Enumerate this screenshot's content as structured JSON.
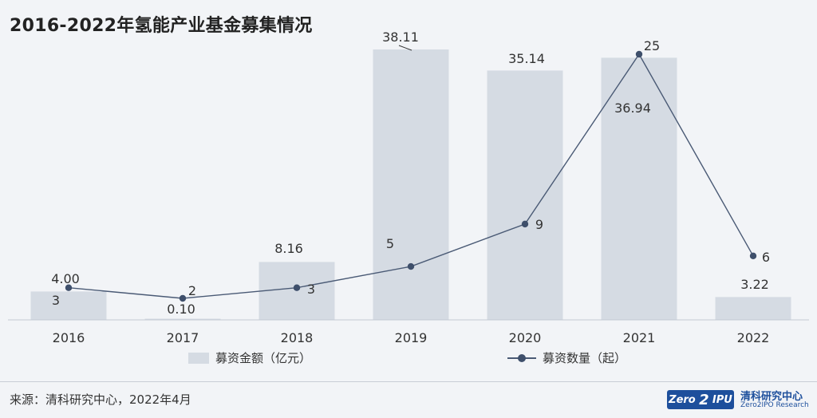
{
  "title": "2016-2022年氢能产业基金募集情况",
  "chart_data": {
    "type": "bar",
    "categories": [
      "2016",
      "2017",
      "2018",
      "2019",
      "2020",
      "2021",
      "2022"
    ],
    "series": [
      {
        "name": "募资金额（亿元）",
        "type": "bar",
        "values": [
          4.0,
          0.1,
          8.16,
          38.11,
          35.14,
          36.94,
          3.22
        ],
        "labels": [
          "4.00",
          "0.10",
          "8.16",
          "38.11",
          "35.14",
          "36.94",
          "3.22"
        ]
      },
      {
        "name": "募资数量（起）",
        "type": "line",
        "values": [
          3,
          2,
          3,
          5,
          9,
          25,
          6
        ],
        "labels": [
          "3",
          "2",
          "3",
          "5",
          "9",
          "25",
          "6"
        ]
      }
    ],
    "colors": {
      "bar": "#d5dbe3",
      "line": "#4a5a75",
      "marker": "#3e4f6b"
    },
    "legend_position": "bottom"
  },
  "legend": {
    "bar_label": "募资金额（亿元）",
    "line_label": "募资数量（起）"
  },
  "source": "来源：清科研究中心，2022年4月",
  "logo": {
    "mark_left": "Zero",
    "mark_mid": "2",
    "mark_right": "IPU",
    "cn": "清科研究中心",
    "en": "Zero2IPO Research"
  }
}
